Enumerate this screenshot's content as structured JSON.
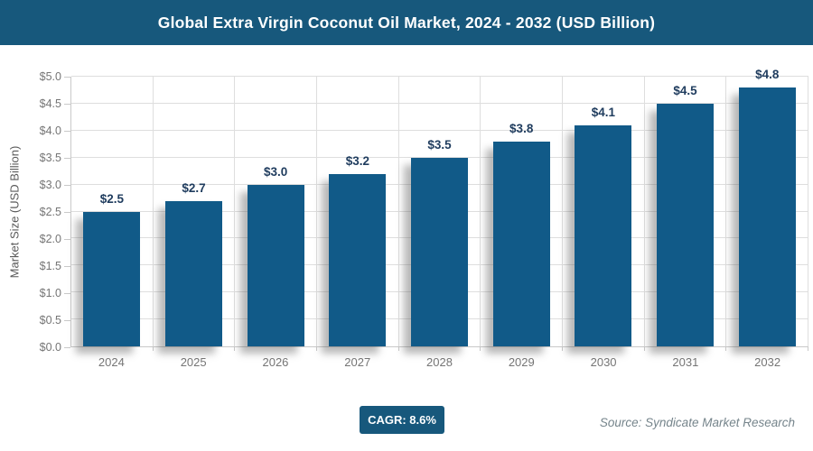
{
  "header": {
    "title": "Global Extra Virgin Coconut Oil Market, 2024 - 2032 (USD Billion)",
    "bg_color": "#17587C"
  },
  "chart_data": {
    "type": "bar",
    "title": "Global Extra Virgin Coconut Oil Market, 2024 - 2032 (USD Billion)",
    "categories": [
      "2024",
      "2025",
      "2026",
      "2027",
      "2028",
      "2029",
      "2030",
      "2031",
      "2032"
    ],
    "values": [
      2.5,
      2.7,
      3.0,
      3.2,
      3.5,
      3.8,
      4.1,
      4.5,
      4.8
    ],
    "value_labels": [
      "$2.5",
      "$2.7",
      "$3.0",
      "$3.2",
      "$3.5",
      "$3.8",
      "$4.1",
      "$4.5",
      "$4.8"
    ],
    "xlabel": "",
    "ylabel": "Market Size (USD Billion)",
    "ylim": [
      0,
      5.0
    ],
    "y_ticks": [
      "$0.0",
      "$0.5",
      "$1.0",
      "$1.5",
      "$2.0",
      "$2.5",
      "$3.0",
      "$3.5",
      "$4.0",
      "$4.5",
      "$5.0"
    ],
    "grid": "horizontal-and-vertical",
    "legend": "none",
    "bar_color": "#115A88",
    "value_label_color": "#1F3C5E"
  },
  "footer": {
    "cagr_label": "CAGR: 8.6%",
    "source": "Source: Syndicate Market Research"
  }
}
